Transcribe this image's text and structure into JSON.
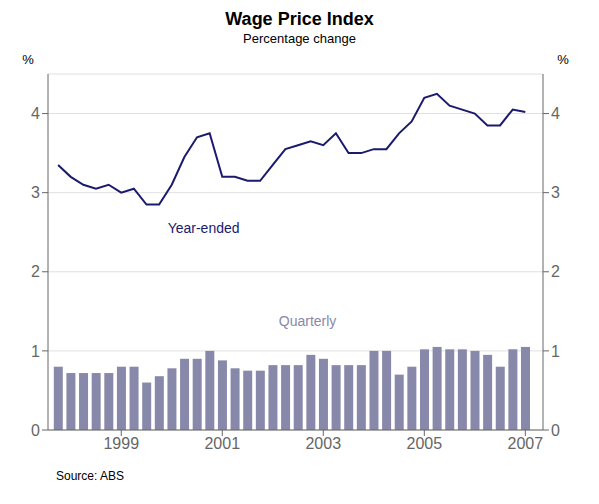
{
  "chart_data": {
    "type": "bar",
    "title": "Wage Price Index",
    "subtitle": "Percentage change",
    "source": "Source: ABS",
    "y_label": "%",
    "y2_label": "%",
    "x": [
      1997.75,
      1998.0,
      1998.25,
      1998.5,
      1998.75,
      1999.0,
      1999.25,
      1999.5,
      1999.75,
      2000.0,
      2000.25,
      2000.5,
      2000.75,
      2001.0,
      2001.25,
      2001.5,
      2001.75,
      2002.0,
      2002.25,
      2002.5,
      2002.75,
      2003.0,
      2003.25,
      2003.5,
      2003.75,
      2004.0,
      2004.25,
      2004.5,
      2004.75,
      2005.0,
      2005.25,
      2005.5,
      2005.75,
      2006.0,
      2006.25,
      2006.5,
      2006.75,
      2007.0
    ],
    "series": [
      {
        "type": "bar",
        "color": "#8888aa",
        "values": [
          0.8,
          0.72,
          0.72,
          0.72,
          0.72,
          0.8,
          0.8,
          0.6,
          0.68,
          0.78,
          0.9,
          0.9,
          1.0,
          0.88,
          0.78,
          0.75,
          0.75,
          0.82,
          0.82,
          0.82,
          0.95,
          0.9,
          0.82,
          0.82,
          0.82,
          1.0,
          1.0,
          0.7,
          0.8,
          1.02,
          1.05,
          1.02,
          1.02,
          1.0,
          0.95,
          0.8,
          1.02,
          1.05
        ]
      },
      {
        "type": "line",
        "color": "#1a1a6e",
        "values": [
          3.35,
          3.2,
          3.1,
          3.05,
          3.1,
          3.0,
          3.05,
          2.85,
          2.85,
          3.1,
          3.45,
          3.7,
          3.75,
          3.2,
          3.2,
          3.15,
          3.15,
          3.35,
          3.55,
          3.6,
          3.65,
          3.6,
          3.75,
          3.5,
          3.5,
          3.55,
          3.55,
          3.75,
          3.9,
          4.2,
          4.25,
          4.1,
          4.05,
          4.0,
          3.85,
          3.85,
          4.05,
          4.02
        ]
      }
    ],
    "annotations": [
      {
        "text": "Year-ended",
        "x": 1999.8,
        "y": 2.55,
        "color": "#1a1a6e"
      },
      {
        "text": "Quarterly",
        "x": 2002.0,
        "y": 1.38,
        "color": "#8888aa"
      }
    ],
    "xlim": [
      1997.55,
      2007.35
    ],
    "xticks": [
      1999,
      2001,
      2003,
      2005,
      2007
    ],
    "ylim": [
      0,
      4.5
    ],
    "yticks": [
      0,
      1,
      2,
      3,
      4
    ],
    "y2lim": [
      0,
      4.5
    ],
    "y2ticks": [
      0,
      1,
      2,
      3,
      4
    ],
    "grid": true
  }
}
